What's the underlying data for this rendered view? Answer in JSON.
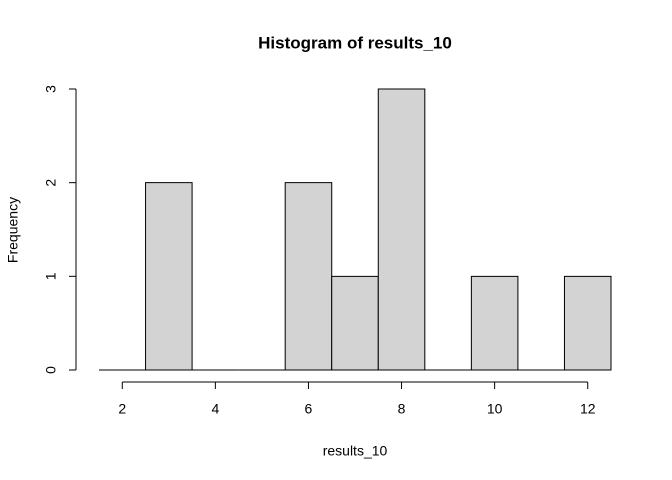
{
  "chart_data": {
    "type": "histogram",
    "title": "Histogram of results_10",
    "x_label": "results_10",
    "y_label": "Frequency",
    "bins": [
      1.5,
      2.5,
      3.5,
      4.5,
      5.5,
      6.5,
      7.5,
      8.5,
      9.5,
      10.5,
      11.5,
      12.5
    ],
    "counts": [
      0,
      2,
      0,
      0,
      2,
      1,
      3,
      0,
      1,
      0,
      1
    ],
    "color": "#d3d3d3",
    "xlim": [
      1.5,
      12.5
    ],
    "xticks": [
      2,
      4,
      6,
      8,
      10,
      12
    ],
    "ylim": [
      0,
      3
    ],
    "yticks": [
      0,
      1,
      2,
      3
    ]
  }
}
